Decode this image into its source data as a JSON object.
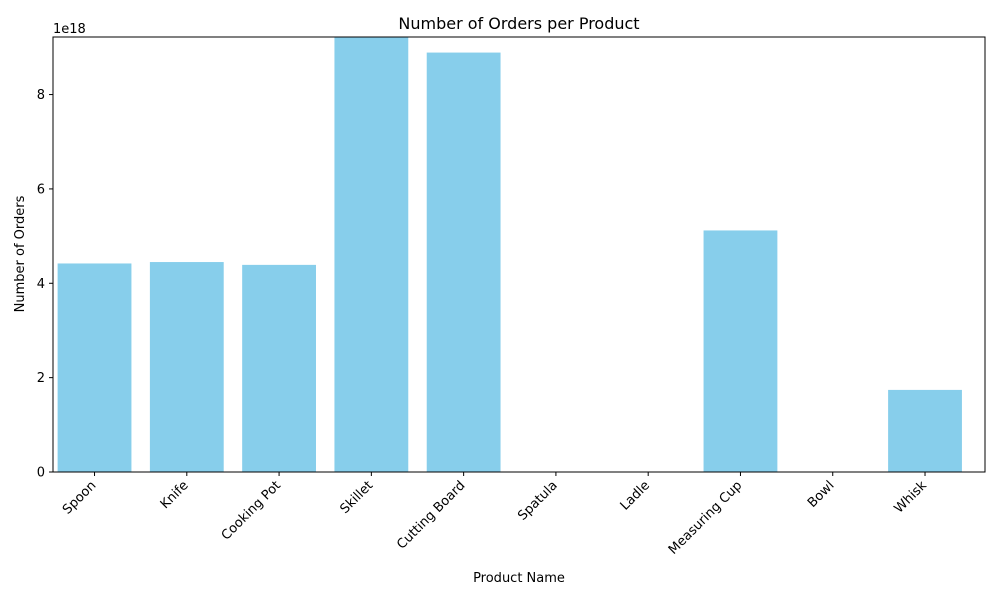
{
  "chart_data": {
    "type": "bar",
    "title": "Number of Orders per Product",
    "xlabel": "Product Name",
    "ylabel": "Number of Orders",
    "scale_label": "1e18",
    "categories": [
      "Spoon",
      "Knife",
      "Cooking Pot",
      "Skillet",
      "Cutting Board",
      "Spatula",
      "Ladle",
      "Measuring Cup",
      "Bowl",
      "Whisk"
    ],
    "values": [
      4.42e+18,
      4.45e+18,
      4.39e+18,
      9.22e+18,
      8.89e+18,
      0,
      0,
      5.12e+18,
      0,
      1.74e+18
    ],
    "ylim": [
      0,
      9.22e+18
    ],
    "yticks": [
      0,
      2e+18,
      4e+18,
      6e+18,
      8e+18
    ],
    "ytick_labels": [
      "0",
      "2",
      "4",
      "6",
      "8"
    ],
    "bar_color": "#87ceeb",
    "grid": false
  }
}
